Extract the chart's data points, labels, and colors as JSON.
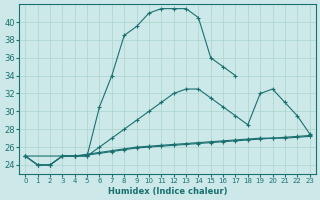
{
  "xlabel": "Humidex (Indice chaleur)",
  "background_color": "#cce8e8",
  "grid_color": "#aad4cc",
  "line_color": "#1a7070",
  "xlim": [
    -0.5,
    23.5
  ],
  "ylim": [
    23.0,
    42.0
  ],
  "xticks": [
    0,
    1,
    2,
    3,
    4,
    5,
    6,
    7,
    8,
    9,
    10,
    11,
    12,
    13,
    14,
    15,
    16,
    17,
    18,
    19,
    20,
    21,
    22,
    23
  ],
  "yticks": [
    24,
    26,
    28,
    30,
    32,
    34,
    36,
    38,
    40
  ],
  "curves": [
    {
      "x": [
        0,
        1,
        2,
        3,
        4,
        5,
        6,
        7,
        8,
        9,
        10,
        11,
        12,
        13,
        14,
        15,
        16,
        17
      ],
      "y": [
        25.0,
        24.0,
        24.0,
        25.0,
        25.0,
        25.0,
        30.5,
        34.0,
        38.5,
        39.5,
        41.0,
        41.5,
        41.5,
        41.5,
        40.5,
        36.0,
        35.0,
        34.0
      ]
    },
    {
      "x": [
        0,
        1,
        2,
        3,
        4,
        5,
        6,
        7,
        8,
        9,
        10,
        11,
        12,
        13,
        14,
        15,
        16,
        17,
        18,
        19,
        20,
        21,
        22,
        23
      ],
      "y": [
        25.0,
        24.0,
        24.0,
        25.0,
        25.0,
        25.0,
        26.0,
        27.0,
        28.0,
        29.0,
        30.0,
        31.0,
        32.0,
        32.5,
        32.5,
        31.5,
        30.5,
        29.5,
        28.5,
        32.0,
        32.5,
        31.0,
        29.5,
        27.5
      ]
    },
    {
      "x": [
        0,
        1,
        2,
        3,
        4,
        5,
        6,
        7,
        8,
        9,
        10,
        11,
        12,
        13,
        14,
        15,
        16,
        17,
        18,
        19,
        20,
        21,
        22,
        23
      ],
      "y": [
        25.0,
        24.0,
        24.0,
        25.0,
        25.0,
        25.2,
        25.4,
        25.6,
        25.8,
        26.0,
        26.1,
        26.2,
        26.3,
        26.4,
        26.5,
        26.6,
        26.7,
        26.8,
        26.9,
        27.0,
        27.0,
        27.0,
        27.1,
        27.2
      ]
    },
    {
      "x": [
        0,
        4,
        5,
        6,
        7,
        8,
        9,
        10,
        11,
        12,
        13,
        14,
        15,
        16,
        17,
        18,
        19,
        20,
        21,
        22,
        23
      ],
      "y": [
        25.0,
        25.0,
        25.1,
        25.3,
        25.5,
        25.7,
        25.9,
        26.0,
        26.1,
        26.2,
        26.3,
        26.4,
        26.5,
        26.6,
        26.7,
        26.8,
        26.9,
        27.0,
        27.1,
        27.2,
        27.3
      ]
    }
  ]
}
